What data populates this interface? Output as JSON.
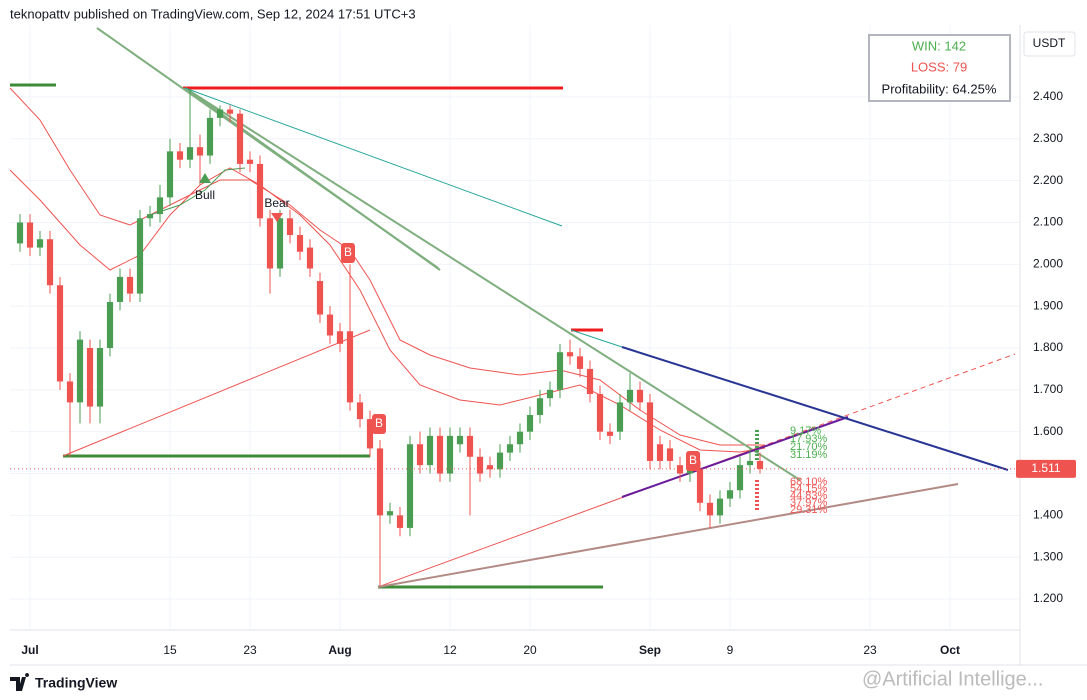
{
  "header": "teknopattv published on TradingView.com, Sep 12, 2024 17:51 UTC+3",
  "footer": "TradingView",
  "watermark": "@Artificial Intellige...",
  "stats": {
    "win": "WIN: 142",
    "loss": "LOSS: 79",
    "profitability": "Profitability: 64.25%"
  },
  "currency": "USDT",
  "signals": {
    "bull": "Bull",
    "bear": "Bear",
    "buy": [
      "B",
      "B",
      "B"
    ]
  },
  "targets": {
    "green": [
      "9.17%",
      "17.93%",
      "21.70%",
      "31.19%"
    ],
    "red": [
      "68.10%",
      "54.15%",
      "44.83%",
      "37.97%",
      "29.31%"
    ]
  },
  "chart_data": {
    "type": "candlestick",
    "x": [
      "2024-06-30",
      "2024-07-01",
      "2024-07-02",
      "2024-07-03",
      "2024-07-04",
      "2024-07-05",
      "2024-07-06",
      "2024-07-07",
      "2024-07-08",
      "2024-07-09",
      "2024-07-10",
      "2024-07-11",
      "2024-07-12",
      "2024-07-13",
      "2024-07-14",
      "2024-07-15",
      "2024-07-16",
      "2024-07-17",
      "2024-07-18",
      "2024-07-19",
      "2024-07-20",
      "2024-07-21",
      "2024-07-22",
      "2024-07-23",
      "2024-07-24",
      "2024-07-25",
      "2024-07-26",
      "2024-07-27",
      "2024-07-28",
      "2024-07-29",
      "2024-07-30",
      "2024-07-31",
      "2024-08-01",
      "2024-08-02",
      "2024-08-03",
      "2024-08-04",
      "2024-08-05",
      "2024-08-06",
      "2024-08-07",
      "2024-08-08",
      "2024-08-09",
      "2024-08-10",
      "2024-08-11",
      "2024-08-12",
      "2024-08-13",
      "2024-08-14",
      "2024-08-15",
      "2024-08-16",
      "2024-08-17",
      "2024-08-18",
      "2024-08-19",
      "2024-08-20",
      "2024-08-21",
      "2024-08-22",
      "2024-08-23",
      "2024-08-24",
      "2024-08-25",
      "2024-08-26",
      "2024-08-27",
      "2024-08-28",
      "2024-08-29",
      "2024-08-30",
      "2024-08-31",
      "2024-09-01",
      "2024-09-02",
      "2024-09-03",
      "2024-09-04",
      "2024-09-05",
      "2024-09-06",
      "2024-09-07",
      "2024-09-08",
      "2024-09-09",
      "2024-09-10",
      "2024-09-11",
      "2024-09-12"
    ],
    "open": [
      2.05,
      2.1,
      2.04,
      2.06,
      1.95,
      1.72,
      1.67,
      1.8,
      1.66,
      1.8,
      1.91,
      1.97,
      1.93,
      2.11,
      2.12,
      2.16,
      2.27,
      2.25,
      2.28,
      2.26,
      2.35,
      2.37,
      2.36,
      2.25,
      2.24,
      2.11,
      1.99,
      2.11,
      2.07,
      2.04,
      1.96,
      1.88,
      1.84,
      1.84,
      1.67,
      1.63,
      1.56,
      1.4,
      1.4,
      1.37,
      1.57,
      1.52,
      1.59,
      1.5,
      1.57,
      1.59,
      1.54,
      1.52,
      1.51,
      1.55,
      1.57,
      1.6,
      1.64,
      1.68,
      1.7,
      1.79,
      1.78,
      1.75,
      1.69,
      1.6,
      1.6,
      1.67,
      1.7,
      1.67,
      1.57,
      1.56,
      1.52,
      1.5,
      1.51,
      1.43,
      1.4,
      1.44,
      1.46,
      1.52,
      1.53
    ],
    "high": [
      2.12,
      2.12,
      2.08,
      2.08,
      1.97,
      1.74,
      1.84,
      1.82,
      1.82,
      1.93,
      1.99,
      1.99,
      2.13,
      2.14,
      2.19,
      2.3,
      2.29,
      2.42,
      2.31,
      2.37,
      2.38,
      2.38,
      2.37,
      2.27,
      2.26,
      2.13,
      2.13,
      2.13,
      2.09,
      2.06,
      1.98,
      1.9,
      1.86,
      2.0,
      1.69,
      1.65,
      1.58,
      1.43,
      1.42,
      1.59,
      1.6,
      1.61,
      1.61,
      1.61,
      1.61,
      1.61,
      1.56,
      1.54,
      1.57,
      1.59,
      1.62,
      1.66,
      1.7,
      1.72,
      1.81,
      1.82,
      1.8,
      1.77,
      1.71,
      1.62,
      1.69,
      1.74,
      1.72,
      1.69,
      1.59,
      1.58,
      1.54,
      1.53,
      1.53,
      1.45,
      1.46,
      1.48,
      1.54,
      1.56,
      1.55
    ],
    "low": [
      2.03,
      2.02,
      2.02,
      1.93,
      1.7,
      1.54,
      1.62,
      1.62,
      1.62,
      1.78,
      1.89,
      1.91,
      1.91,
      2.09,
      2.1,
      2.14,
      2.23,
      2.23,
      2.19,
      2.24,
      2.33,
      2.34,
      2.22,
      2.22,
      2.09,
      1.93,
      1.97,
      2.05,
      2.01,
      1.97,
      1.86,
      1.81,
      1.79,
      1.65,
      1.61,
      1.54,
      1.23,
      1.38,
      1.35,
      1.35,
      1.5,
      1.5,
      1.48,
      1.48,
      1.55,
      1.4,
      1.48,
      1.49,
      1.49,
      1.53,
      1.55,
      1.58,
      1.62,
      1.66,
      1.68,
      1.76,
      1.73,
      1.67,
      1.58,
      1.57,
      1.58,
      1.65,
      1.65,
      1.51,
      1.51,
      1.51,
      1.48,
      1.48,
      1.41,
      1.37,
      1.38,
      1.42,
      1.44,
      1.5,
      1.5
    ],
    "close": [
      2.1,
      2.04,
      2.06,
      1.95,
      1.72,
      1.67,
      1.82,
      1.66,
      1.8,
      1.91,
      1.97,
      1.93,
      2.11,
      2.12,
      2.16,
      2.27,
      2.25,
      2.28,
      2.26,
      2.35,
      2.37,
      2.36,
      2.24,
      2.24,
      2.11,
      1.99,
      2.11,
      2.07,
      2.03,
      1.99,
      1.88,
      1.83,
      1.81,
      1.67,
      1.63,
      1.56,
      1.4,
      1.41,
      1.37,
      1.57,
      1.52,
      1.59,
      1.5,
      1.59,
      1.59,
      1.54,
      1.5,
      1.51,
      1.55,
      1.57,
      1.6,
      1.64,
      1.68,
      1.7,
      1.79,
      1.78,
      1.75,
      1.69,
      1.6,
      1.59,
      1.67,
      1.7,
      1.67,
      1.53,
      1.53,
      1.53,
      1.5,
      1.51,
      1.43,
      1.4,
      1.44,
      1.46,
      1.52,
      1.53,
      1.511
    ],
    "up_color": "#4a9d52",
    "down_color": "#ef5350",
    "xlim": [
      "2024-06-29",
      "2024-10-08"
    ],
    "xticks": [
      {
        "value": "2024-07-01",
        "label": "Jul"
      },
      {
        "value": "2024-07-15",
        "label": "15"
      },
      {
        "value": "2024-07-23",
        "label": "23"
      },
      {
        "value": "2024-08-01",
        "label": "Aug"
      },
      {
        "value": "2024-08-12",
        "label": "12"
      },
      {
        "value": "2024-08-20",
        "label": "20"
      },
      {
        "value": "2024-09-01",
        "label": "Sep"
      },
      {
        "value": "2024-09-09",
        "label": "9"
      },
      {
        "value": "2024-09-23",
        "label": "23"
      },
      {
        "value": "2024-10-01",
        "label": "Oct"
      }
    ],
    "ylim": [
      1.126,
      2.572
    ],
    "yticks": [
      {
        "value": 1.2,
        "label": "1.200"
      },
      {
        "value": 1.3,
        "label": "1.300"
      },
      {
        "value": 1.4,
        "label": "1.400"
      },
      {
        "value": 1.5,
        "label": "1.500"
      },
      {
        "value": 1.6,
        "label": "1.600"
      },
      {
        "value": 1.7,
        "label": "1.700"
      },
      {
        "value": 1.8,
        "label": "1.800"
      },
      {
        "value": 1.9,
        "label": "1.900"
      },
      {
        "value": 2.0,
        "label": "2.000"
      },
      {
        "value": 2.1,
        "label": "2.100"
      },
      {
        "value": 2.2,
        "label": "2.200"
      },
      {
        "value": 2.3,
        "label": "2.300"
      },
      {
        "value": 2.4,
        "label": "2.400"
      }
    ],
    "grid": true
  }
}
